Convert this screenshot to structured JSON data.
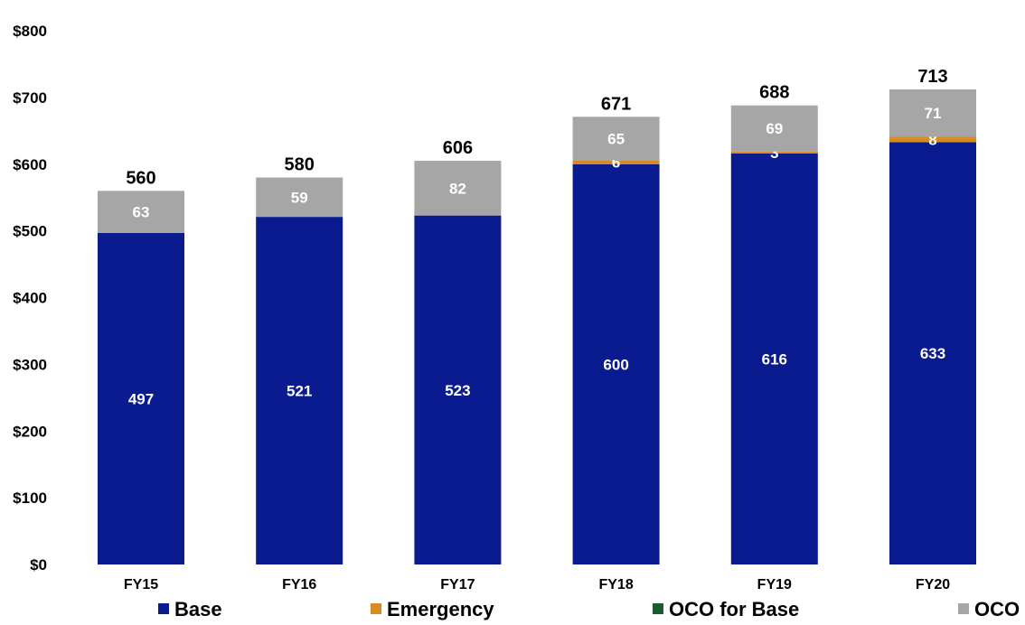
{
  "chart_data": {
    "type": "bar",
    "stacked": true,
    "title": "",
    "xlabel": "",
    "ylabel": "",
    "categories": [
      "FY15",
      "FY16",
      "FY17",
      "FY18",
      "FY19",
      "FY20"
    ],
    "ylim": [
      0,
      800
    ],
    "yticks": [
      0,
      100,
      200,
      300,
      400,
      500,
      600,
      700,
      800
    ],
    "ytick_labels": [
      "$0",
      "$100",
      "$200",
      "$300",
      "$400",
      "$500",
      "$600",
      "$700",
      "$800"
    ],
    "series": [
      {
        "name": "Base",
        "color": "#0a1a8f",
        "values": [
          497,
          521,
          523,
          600,
          616,
          633
        ],
        "labels": [
          "497",
          "521",
          "523",
          "600",
          "616",
          "633"
        ]
      },
      {
        "name": "Emergency",
        "color": "#d98a23",
        "values": [
          0,
          0,
          0,
          6,
          3,
          8
        ],
        "labels": [
          "",
          "",
          "",
          "6",
          "3",
          "8"
        ]
      },
      {
        "name": "OCO for Base",
        "color": "#1a5c2e",
        "values": [
          0,
          0,
          0,
          0,
          0,
          0
        ],
        "labels": [
          "",
          "",
          "",
          "",
          "",
          ""
        ]
      },
      {
        "name": "OCO",
        "color": "#a6a6a6",
        "values": [
          63,
          59,
          82,
          65,
          69,
          71
        ],
        "labels": [
          "63",
          "59",
          "82",
          "65",
          "69",
          "71"
        ]
      }
    ],
    "totals": [
      560,
      580,
      606,
      671,
      688,
      713
    ],
    "grid": false,
    "legend_position": "bottom"
  }
}
